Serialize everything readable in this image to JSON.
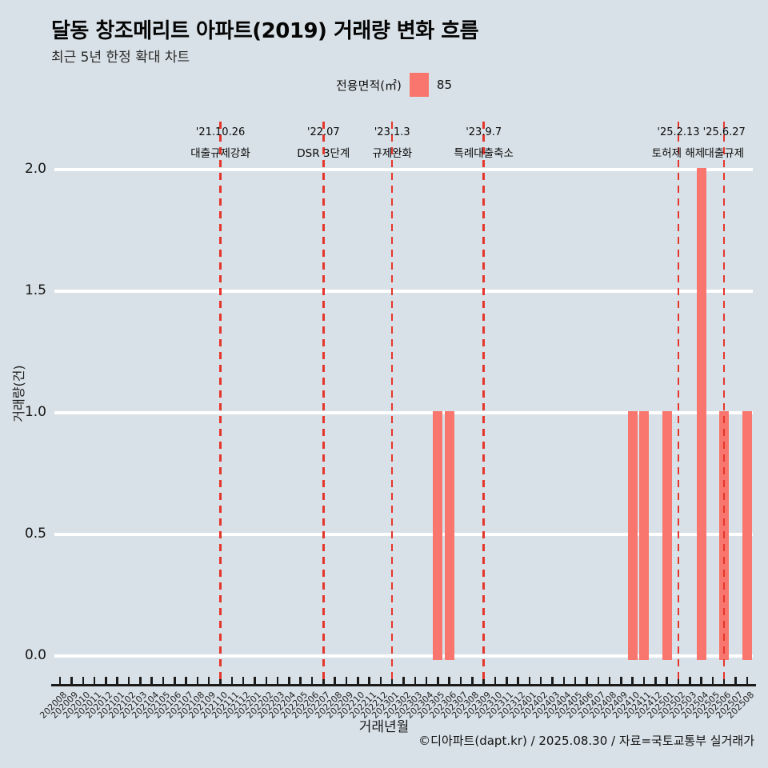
{
  "header": {
    "title": "달동 창조메리트 아파트(2019) 거래량 변화 흐름",
    "subtitle": "최근 5년 한정 확대 차트"
  },
  "legend": {
    "label": "전용면적(㎡)",
    "value": "85"
  },
  "axes": {
    "x_title": "거래년월",
    "y_title": "거래량(건)"
  },
  "footer": {
    "credit": "©디아파트(dapt.kr) / 2025.08.30 / 자료=국토교통부 실거래가"
  },
  "colors": {
    "background": "#d8e1e7",
    "bar": "#f8766d",
    "event_line": "#e5352b",
    "gridline": "#ffffff",
    "axis": "#1a1a1a"
  },
  "chart_data": {
    "type": "bar",
    "title": "달동 창조메리트 아파트(2019) 거래량 변화 흐름",
    "xlabel": "거래년월",
    "ylabel": "거래량(건)",
    "ylim": [
      0,
      2
    ],
    "yticks": [
      "0.0",
      "0.5",
      "1.0",
      "1.5",
      "2.0"
    ],
    "grid": true,
    "legend_position": "top",
    "series_name": "85",
    "categories": [
      "202008",
      "202009",
      "202010",
      "202011",
      "202012",
      "202101",
      "202102",
      "202103",
      "202104",
      "202105",
      "202106",
      "202107",
      "202108",
      "202109",
      "202110",
      "202111",
      "202112",
      "202201",
      "202202",
      "202203",
      "202204",
      "202205",
      "202206",
      "202207",
      "202208",
      "202209",
      "202210",
      "202211",
      "202212",
      "202301",
      "202302",
      "202303",
      "202304",
      "202305",
      "202306",
      "202307",
      "202308",
      "202309",
      "202310",
      "202311",
      "202312",
      "202401",
      "202402",
      "202403",
      "202404",
      "202405",
      "202406",
      "202407",
      "202408",
      "202409",
      "202410",
      "202411",
      "202412",
      "202501",
      "202502",
      "202503",
      "202504",
      "202505",
      "202506",
      "202507",
      "202508"
    ],
    "values": [
      0,
      0,
      0,
      0,
      0,
      0,
      0,
      0,
      0,
      0,
      0,
      0,
      0,
      0,
      0,
      0,
      0,
      0,
      0,
      0,
      0,
      0,
      0,
      0,
      0,
      0,
      0,
      0,
      0,
      0,
      0,
      0,
      0,
      1,
      1,
      0,
      0,
      0,
      0,
      0,
      0,
      0,
      0,
      0,
      0,
      0,
      0,
      0,
      0,
      0,
      1,
      1,
      0,
      1,
      0,
      0,
      2,
      0,
      1,
      0,
      1
    ],
    "events": [
      {
        "date": "'21.10.26",
        "label": "대출규제강화",
        "month": "202110"
      },
      {
        "date": "'22.07",
        "label": "DSR 3단계",
        "month": "202207"
      },
      {
        "date": "'23.1.3",
        "label": "규제완화",
        "month": "202301"
      },
      {
        "date": "'23.9.7",
        "label": "특례대출축소",
        "month": "202309"
      },
      {
        "date": "'25.2.13",
        "label": "토허제 해제",
        "month": "202502"
      },
      {
        "date": "'25.6.27",
        "label": "대출규제",
        "month": "202506"
      }
    ]
  }
}
